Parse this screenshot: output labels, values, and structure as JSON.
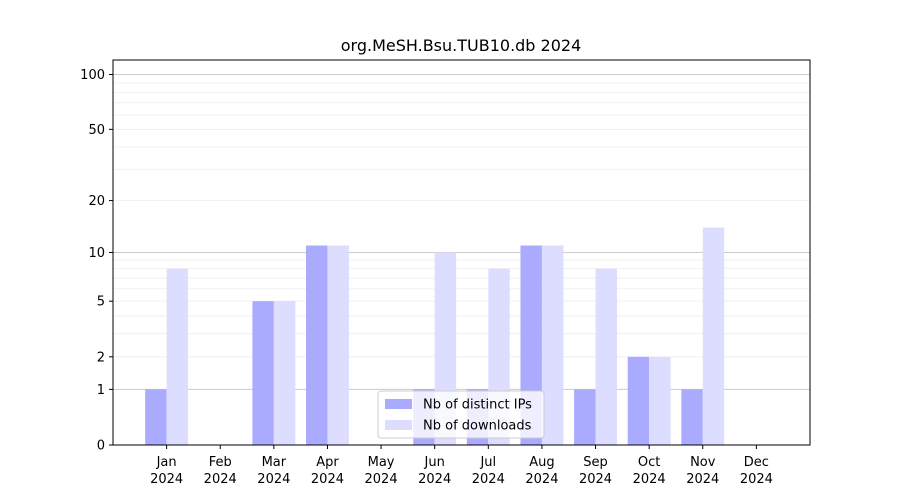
{
  "chart_data": {
    "type": "bar",
    "title": "org.MeSH.Bsu.TUB10.db 2024",
    "categories": [
      [
        "Jan",
        "2024"
      ],
      [
        "Feb",
        "2024"
      ],
      [
        "Mar",
        "2024"
      ],
      [
        "Apr",
        "2024"
      ],
      [
        "May",
        "2024"
      ],
      [
        "Jun",
        "2024"
      ],
      [
        "Jul",
        "2024"
      ],
      [
        "Aug",
        "2024"
      ],
      [
        "Sep",
        "2024"
      ],
      [
        "Oct",
        "2024"
      ],
      [
        "Nov",
        "2024"
      ],
      [
        "Dec",
        "2024"
      ]
    ],
    "series": [
      {
        "name": "Nb of distinct IPs",
        "color": "#aaaaff",
        "values": [
          1,
          0,
          5,
          11,
          0,
          1,
          1,
          11,
          1,
          2,
          1,
          0
        ]
      },
      {
        "name": "Nb of downloads",
        "color": "#ddddff",
        "values": [
          8,
          0,
          5,
          11,
          0,
          10,
          8,
          11,
          8,
          2,
          14,
          0
        ]
      }
    ],
    "y_scale": "log(1+y)",
    "ylim": [
      0,
      120
    ],
    "yticks": [
      0,
      1,
      2,
      5,
      10,
      20,
      50,
      100
    ],
    "grid": true,
    "legend_position": "bottom-center",
    "xlabel": "",
    "ylabel": ""
  }
}
